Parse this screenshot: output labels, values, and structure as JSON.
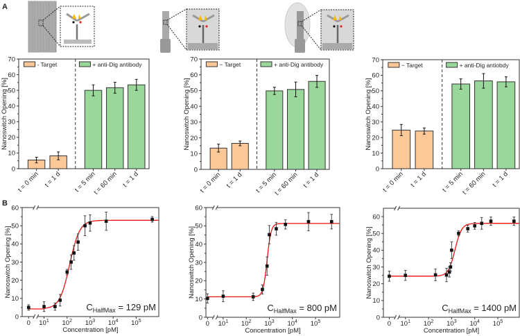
{
  "panels": {
    "a": "A",
    "b": "B"
  },
  "colors": {
    "target_bar": "#fcc897",
    "antibody_bar": "#9ad79a",
    "fit_line": "#ee1111",
    "marker": "#111111",
    "frame": "#333333"
  },
  "chart_data": [
    {
      "type": "bar",
      "panel": "A",
      "ylabel": "Nanoswitch Opening [%]",
      "ylim": [
        0,
        70
      ],
      "yticks": [
        "0",
        "10",
        "20",
        "30",
        "40",
        "50",
        "60",
        "70"
      ],
      "categories": [
        "t = 0 min",
        "t = 1 d",
        "t = 5 min",
        "t = 60 min",
        "t = 1 d"
      ],
      "values": [
        5.5,
        8.2,
        50.0,
        51.7,
        53.5
      ],
      "errors": [
        1.8,
        2.5,
        3.5,
        3.5,
        3.5
      ],
      "groups": [
        0,
        0,
        1,
        1,
        1
      ],
      "legend": [
        "- Target",
        "+ anti-Dig antibody"
      ]
    },
    {
      "type": "bar",
      "panel": "A",
      "ylabel": "Nanoswitch Opening [%]",
      "ylim": [
        0,
        70
      ],
      "yticks": [
        "0",
        "10",
        "20",
        "30",
        "40",
        "50",
        "60",
        "70"
      ],
      "categories": [
        "t = 0 min",
        "t = 1 d",
        "t = 5 min",
        "t = 60 min",
        "t = 1 d"
      ],
      "values": [
        13.5,
        16.5,
        49.8,
        50.7,
        55.8
      ],
      "errors": [
        2.5,
        1.5,
        2.3,
        4.7,
        3.8
      ],
      "groups": [
        0,
        0,
        1,
        1,
        1
      ],
      "legend": [
        "− Target",
        "+ anti-Dig antibody"
      ]
    },
    {
      "type": "bar",
      "panel": "A",
      "ylabel": "Nanoswitch Opening [%]",
      "ylim": [
        0,
        70
      ],
      "yticks": [
        "0",
        "10",
        "20",
        "30",
        "40",
        "50",
        "60",
        "70"
      ],
      "categories": [
        "t = 0 min",
        "t = 1 d",
        "t = 5 min",
        "t = 60 min",
        "t = 1 d"
      ],
      "values": [
        24.8,
        24.2,
        54.4,
        56.4,
        55.8
      ],
      "errors": [
        3.6,
        2.0,
        3.3,
        4.7,
        3.2
      ],
      "groups": [
        0,
        0,
        1,
        1,
        1
      ],
      "legend": [
        "− Target",
        "+ anti-Dig antiobdy"
      ]
    },
    {
      "type": "scatter",
      "panel": "B",
      "xlabel": "Concentration [pM]",
      "ylabel": "Nanoswitch Opening [%]",
      "xscale": "log with axis break (0 shown left of break)",
      "ylim": [
        0,
        60
      ],
      "yticks": [
        "0",
        "10",
        "20",
        "30",
        "40",
        "50",
        "60"
      ],
      "xticks": [
        "0",
        "10^1",
        "10^2",
        "10^3",
        "10^4",
        "10^5"
      ],
      "x": [
        0,
        10,
        30,
        50,
        100,
        150,
        200,
        300,
        600,
        1000,
        5000,
        500000
      ],
      "y": [
        5.0,
        5.5,
        5.5,
        9.0,
        24.5,
        30.0,
        35.0,
        41.0,
        50.0,
        51.5,
        52.5,
        53.5
      ],
      "errors": [
        1.5,
        2.7,
        2.0,
        3.2,
        1.5,
        4.0,
        4.0,
        4.5,
        5.5,
        4.5,
        5.0,
        1.5
      ],
      "fit": {
        "bottom": 4.2,
        "top": 53.0,
        "half": 129,
        "hill": 2.0
      },
      "annotation": {
        "main": "C",
        "sub": "HalfMax",
        "rest": " = 129 pM"
      }
    },
    {
      "type": "scatter",
      "panel": "B",
      "xlabel": "Concentration [pM]",
      "ylabel": "Nanoswitch Opening [%]",
      "xscale": "log with axis break (0 shown left of break)",
      "ylim": [
        0,
        60
      ],
      "yticks": [
        "0",
        "10",
        "20",
        "30",
        "40",
        "50",
        "60"
      ],
      "xticks": [
        "0",
        "10^1",
        "10^2",
        "10^3",
        "10^4",
        "10^5"
      ],
      "x": [
        0,
        10,
        200,
        500,
        800,
        1000,
        2000,
        5000,
        50000,
        500000
      ],
      "y": [
        10.3,
        11.5,
        11.2,
        15.2,
        28.0,
        45.2,
        48.4,
        50.8,
        52.3,
        52.3
      ],
      "errors": [
        2.5,
        3.0,
        2.0,
        2.5,
        5.0,
        5.0,
        3.5,
        2.5,
        5.0,
        4.0
      ],
      "fit": {
        "bottom": 11.2,
        "top": 51.3,
        "half": 800,
        "hill": 5.0
      },
      "annotation": {
        "main": "C",
        "sub": "HalfMax",
        "rest": " = 800 pM"
      }
    },
    {
      "type": "scatter",
      "panel": "B",
      "xlabel": "Concentration [pM]",
      "ylabel": "Nanoswitch Opening [%]",
      "xscale": "log with axis break (0 shown left of break)",
      "ylim": [
        0,
        65
      ],
      "yticks": [
        "0",
        "10",
        "20",
        "30",
        "40",
        "50",
        "60"
      ],
      "xticks": [
        "0",
        "10^1",
        "10^2",
        "10^3",
        "10^4",
        "10^5"
      ],
      "x": [
        0,
        10,
        200,
        600,
        800,
        900,
        1000,
        2000,
        5000,
        10000,
        20000,
        50000,
        500000
      ],
      "y": [
        24.5,
        25.0,
        25.3,
        25.2,
        27.0,
        30.0,
        40.0,
        50.0,
        52.8,
        54.5,
        56.0,
        57.3,
        57.3
      ],
      "errors": [
        3.0,
        3.0,
        3.5,
        4.0,
        3.0,
        2.5,
        5.0,
        1.5,
        2.0,
        2.0,
        3.5,
        2.5,
        2.5
      ],
      "fit": {
        "bottom": 24.5,
        "top": 56.0,
        "half": 1400,
        "hill": 3.0
      },
      "annotation": {
        "main": "C",
        "sub": "HalfMax",
        "rest": " = 1400 pM"
      }
    }
  ]
}
